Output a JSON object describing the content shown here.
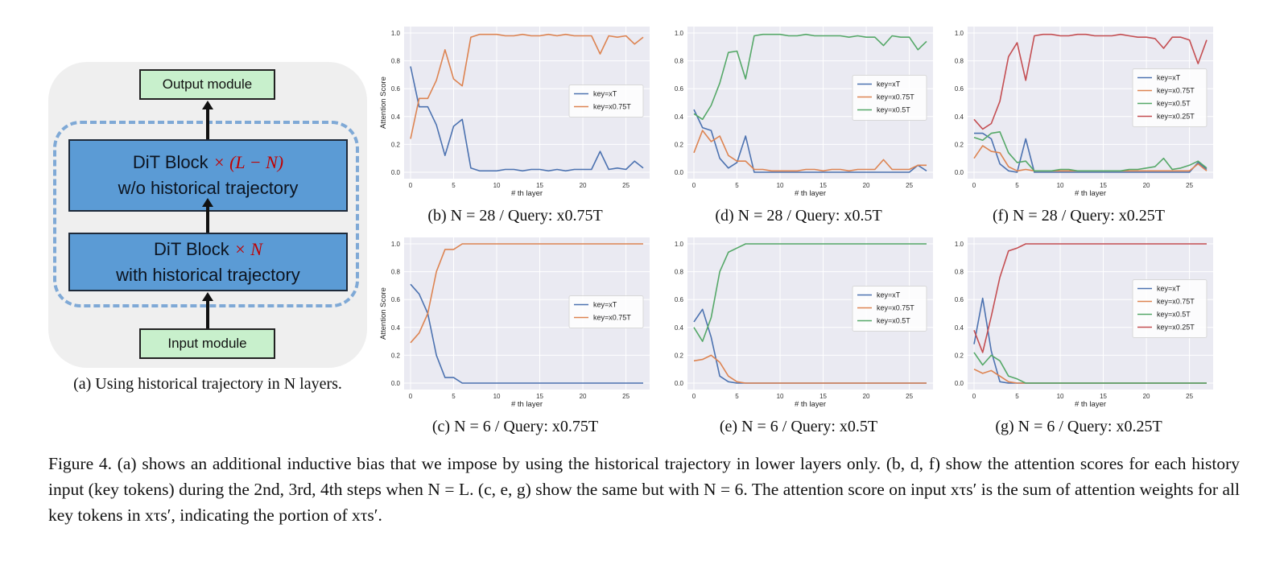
{
  "diagram": {
    "output_module": "Output module",
    "input_module": "Input module",
    "block_top": {
      "title": "DiT Block",
      "mult": "× (L − N)",
      "sub": "w/o historical trajectory"
    },
    "block_bottom": {
      "title": "DiT Block",
      "mult": "× N",
      "sub": "with historical trajectory"
    },
    "caption": "(a) Using historical trajectory in N layers."
  },
  "figure_caption": "Figure 4. (a) shows an additional inductive bias that we impose by using the historical trajectory in lower layers only. (b, d, f) show the attention scores for each history input (key tokens) during the 2nd, 3rd, 4th steps when N = L. (c, e, g) show the same but with N = 6. The attention score on input xτs′ is the sum of attention weights for all key tokens in xτs′, indicating the portion of xτs′.",
  "colors": {
    "blue": "#4c72b0",
    "orange": "#dd8452",
    "green": "#55a868",
    "red": "#c44e52",
    "plot_bg": "#eaeaf2"
  },
  "chart_data": [
    {
      "id": "b",
      "type": "line",
      "caption": "(b) N = 28 / Query: x0.75T",
      "xlabel": "# th layer",
      "ylabel": "Attention Score",
      "xlim": [
        0,
        27
      ],
      "ylim": [
        0,
        1.0
      ],
      "xticks": [
        0,
        5,
        10,
        15,
        20,
        25
      ],
      "yticks": [
        0.0,
        0.2,
        0.4,
        0.6,
        0.8,
        1.0
      ],
      "legend": "center-right",
      "series": [
        {
          "name": "key=xT",
          "color": "#4c72b0",
          "values": [
            0.76,
            0.47,
            0.47,
            0.34,
            0.12,
            0.33,
            0.38,
            0.03,
            0.01,
            0.01,
            0.01,
            0.02,
            0.02,
            0.01,
            0.02,
            0.02,
            0.01,
            0.02,
            0.01,
            0.02,
            0.02,
            0.02,
            0.15,
            0.02,
            0.03,
            0.02,
            0.08,
            0.03
          ]
        },
        {
          "name": "key=x0.75T",
          "color": "#dd8452",
          "values": [
            0.24,
            0.53,
            0.53,
            0.66,
            0.88,
            0.67,
            0.62,
            0.97,
            0.99,
            0.99,
            0.99,
            0.98,
            0.98,
            0.99,
            0.98,
            0.98,
            0.99,
            0.98,
            0.99,
            0.98,
            0.98,
            0.98,
            0.85,
            0.98,
            0.97,
            0.98,
            0.92,
            0.97
          ]
        }
      ]
    },
    {
      "id": "d",
      "type": "line",
      "caption": "(d) N = 28 / Query: x0.5T",
      "xlabel": "# th layer",
      "ylabel": "",
      "xlim": [
        0,
        27
      ],
      "ylim": [
        0,
        1.0
      ],
      "xticks": [
        0,
        5,
        10,
        15,
        20,
        25
      ],
      "yticks": [
        0.0,
        0.2,
        0.4,
        0.6,
        0.8,
        1.0
      ],
      "legend": "center-right",
      "series": [
        {
          "name": "key=xT",
          "color": "#4c72b0",
          "values": [
            0.45,
            0.32,
            0.3,
            0.1,
            0.03,
            0.07,
            0.26,
            0.0,
            0.0,
            0.0,
            0.0,
            0.0,
            0.0,
            0.0,
            0.0,
            0.0,
            0.0,
            0.0,
            0.0,
            0.0,
            0.0,
            0.0,
            0.0,
            0.0,
            0.0,
            0.0,
            0.05,
            0.01
          ]
        },
        {
          "name": "key=x0.75T",
          "color": "#dd8452",
          "values": [
            0.14,
            0.3,
            0.22,
            0.26,
            0.12,
            0.08,
            0.08,
            0.02,
            0.02,
            0.01,
            0.01,
            0.01,
            0.01,
            0.02,
            0.02,
            0.01,
            0.02,
            0.02,
            0.01,
            0.02,
            0.02,
            0.02,
            0.09,
            0.02,
            0.02,
            0.02,
            0.05,
            0.05
          ]
        },
        {
          "name": "key=x0.5T",
          "color": "#55a868",
          "values": [
            0.42,
            0.38,
            0.48,
            0.64,
            0.86,
            0.87,
            0.67,
            0.98,
            0.99,
            0.99,
            0.99,
            0.98,
            0.98,
            0.99,
            0.98,
            0.98,
            0.98,
            0.98,
            0.97,
            0.98,
            0.97,
            0.97,
            0.91,
            0.98,
            0.97,
            0.97,
            0.88,
            0.94
          ]
        }
      ]
    },
    {
      "id": "f",
      "type": "line",
      "caption": "(f) N = 28 / Query: x0.25T",
      "xlabel": "# th layer",
      "ylabel": "",
      "xlim": [
        0,
        27
      ],
      "ylim": [
        0,
        1.0
      ],
      "xticks": [
        0,
        5,
        10,
        15,
        20,
        25
      ],
      "yticks": [
        0.0,
        0.2,
        0.4,
        0.6,
        0.8,
        1.0
      ],
      "legend": "center-right",
      "series": [
        {
          "name": "key=xT",
          "color": "#4c72b0",
          "values": [
            0.28,
            0.28,
            0.24,
            0.06,
            0.01,
            0.0,
            0.24,
            0.0,
            0.0,
            0.0,
            0.0,
            0.0,
            0.0,
            0.0,
            0.0,
            0.0,
            0.0,
            0.0,
            0.0,
            0.0,
            0.0,
            0.0,
            0.0,
            0.0,
            0.0,
            0.0,
            0.07,
            0.02
          ]
        },
        {
          "name": "key=x0.75T",
          "color": "#dd8452",
          "values": [
            0.1,
            0.19,
            0.15,
            0.14,
            0.04,
            0.01,
            0.02,
            0.01,
            0.01,
            0.01,
            0.01,
            0.01,
            0.01,
            0.01,
            0.01,
            0.01,
            0.01,
            0.01,
            0.01,
            0.01,
            0.01,
            0.01,
            0.01,
            0.01,
            0.01,
            0.01,
            0.06,
            0.01
          ]
        },
        {
          "name": "key=x0.5T",
          "color": "#55a868",
          "values": [
            0.25,
            0.23,
            0.28,
            0.29,
            0.14,
            0.07,
            0.08,
            0.01,
            0.01,
            0.01,
            0.02,
            0.02,
            0.01,
            0.01,
            0.01,
            0.01,
            0.01,
            0.01,
            0.02,
            0.02,
            0.03,
            0.04,
            0.1,
            0.02,
            0.03,
            0.05,
            0.08,
            0.03
          ]
        },
        {
          "name": "key=x0.25T",
          "color": "#c44e52",
          "values": [
            0.38,
            0.31,
            0.35,
            0.51,
            0.83,
            0.93,
            0.66,
            0.98,
            0.99,
            0.99,
            0.98,
            0.98,
            0.99,
            0.99,
            0.98,
            0.98,
            0.98,
            0.99,
            0.98,
            0.97,
            0.97,
            0.96,
            0.89,
            0.97,
            0.97,
            0.95,
            0.78,
            0.95
          ]
        }
      ]
    },
    {
      "id": "c",
      "type": "line",
      "caption": "(c) N = 6 / Query: x0.75T",
      "xlabel": "# th layer",
      "ylabel": "Attention Score",
      "xlim": [
        0,
        27
      ],
      "ylim": [
        0,
        1.0
      ],
      "xticks": [
        0,
        5,
        10,
        15,
        20,
        25
      ],
      "yticks": [
        0.0,
        0.2,
        0.4,
        0.6,
        0.8,
        1.0
      ],
      "legend": "center-right",
      "series": [
        {
          "name": "key=xT",
          "color": "#4c72b0",
          "values": [
            0.71,
            0.64,
            0.5,
            0.2,
            0.04,
            0.04,
            0.0,
            0.0,
            0.0,
            0.0,
            0.0,
            0.0,
            0.0,
            0.0,
            0.0,
            0.0,
            0.0,
            0.0,
            0.0,
            0.0,
            0.0,
            0.0,
            0.0,
            0.0,
            0.0,
            0.0,
            0.0,
            0.0
          ]
        },
        {
          "name": "key=x0.75T",
          "color": "#dd8452",
          "values": [
            0.29,
            0.36,
            0.5,
            0.8,
            0.96,
            0.96,
            1.0,
            1.0,
            1.0,
            1.0,
            1.0,
            1.0,
            1.0,
            1.0,
            1.0,
            1.0,
            1.0,
            1.0,
            1.0,
            1.0,
            1.0,
            1.0,
            1.0,
            1.0,
            1.0,
            1.0,
            1.0,
            1.0
          ]
        }
      ]
    },
    {
      "id": "e",
      "type": "line",
      "caption": "(e) N = 6 / Query: x0.5T",
      "xlabel": "# th layer",
      "ylabel": "",
      "xlim": [
        0,
        27
      ],
      "ylim": [
        0,
        1.0
      ],
      "xticks": [
        0,
        5,
        10,
        15,
        20,
        25
      ],
      "yticks": [
        0.0,
        0.2,
        0.4,
        0.6,
        0.8,
        1.0
      ],
      "legend": "center-right",
      "series": [
        {
          "name": "key=xT",
          "color": "#4c72b0",
          "values": [
            0.44,
            0.53,
            0.33,
            0.05,
            0.01,
            0.0,
            0.0,
            0.0,
            0.0,
            0.0,
            0.0,
            0.0,
            0.0,
            0.0,
            0.0,
            0.0,
            0.0,
            0.0,
            0.0,
            0.0,
            0.0,
            0.0,
            0.0,
            0.0,
            0.0,
            0.0,
            0.0,
            0.0
          ]
        },
        {
          "name": "key=x0.75T",
          "color": "#dd8452",
          "values": [
            0.16,
            0.17,
            0.2,
            0.15,
            0.05,
            0.01,
            0.0,
            0.0,
            0.0,
            0.0,
            0.0,
            0.0,
            0.0,
            0.0,
            0.0,
            0.0,
            0.0,
            0.0,
            0.0,
            0.0,
            0.0,
            0.0,
            0.0,
            0.0,
            0.0,
            0.0,
            0.0,
            0.0
          ]
        },
        {
          "name": "key=x0.5T",
          "color": "#55a868",
          "values": [
            0.4,
            0.3,
            0.47,
            0.8,
            0.94,
            0.97,
            1.0,
            1.0,
            1.0,
            1.0,
            1.0,
            1.0,
            1.0,
            1.0,
            1.0,
            1.0,
            1.0,
            1.0,
            1.0,
            1.0,
            1.0,
            1.0,
            1.0,
            1.0,
            1.0,
            1.0,
            1.0,
            1.0
          ]
        }
      ]
    },
    {
      "id": "g",
      "type": "line",
      "caption": "(g) N = 6 / Query: x0.25T",
      "xlabel": "# th layer",
      "ylabel": "",
      "xlim": [
        0,
        27
      ],
      "ylim": [
        0,
        1.0
      ],
      "xticks": [
        0,
        5,
        10,
        15,
        20,
        25
      ],
      "yticks": [
        0.0,
        0.2,
        0.4,
        0.6,
        0.8,
        1.0
      ],
      "legend": "center-right",
      "series": [
        {
          "name": "key=xT",
          "color": "#4c72b0",
          "values": [
            0.28,
            0.61,
            0.23,
            0.01,
            0.0,
            0.0,
            0.0,
            0.0,
            0.0,
            0.0,
            0.0,
            0.0,
            0.0,
            0.0,
            0.0,
            0.0,
            0.0,
            0.0,
            0.0,
            0.0,
            0.0,
            0.0,
            0.0,
            0.0,
            0.0,
            0.0,
            0.0,
            0.0
          ]
        },
        {
          "name": "key=x0.75T",
          "color": "#dd8452",
          "values": [
            0.1,
            0.07,
            0.09,
            0.05,
            0.01,
            0.0,
            0.0,
            0.0,
            0.0,
            0.0,
            0.0,
            0.0,
            0.0,
            0.0,
            0.0,
            0.0,
            0.0,
            0.0,
            0.0,
            0.0,
            0.0,
            0.0,
            0.0,
            0.0,
            0.0,
            0.0,
            0.0,
            0.0
          ]
        },
        {
          "name": "key=x0.5T",
          "color": "#55a868",
          "values": [
            0.22,
            0.13,
            0.2,
            0.16,
            0.05,
            0.03,
            0.0,
            0.0,
            0.0,
            0.0,
            0.0,
            0.0,
            0.0,
            0.0,
            0.0,
            0.0,
            0.0,
            0.0,
            0.0,
            0.0,
            0.0,
            0.0,
            0.0,
            0.0,
            0.0,
            0.0,
            0.0,
            0.0
          ]
        },
        {
          "name": "key=x0.25T",
          "color": "#c44e52",
          "values": [
            0.38,
            0.22,
            0.48,
            0.76,
            0.95,
            0.97,
            1.0,
            1.0,
            1.0,
            1.0,
            1.0,
            1.0,
            1.0,
            1.0,
            1.0,
            1.0,
            1.0,
            1.0,
            1.0,
            1.0,
            1.0,
            1.0,
            1.0,
            1.0,
            1.0,
            1.0,
            1.0,
            1.0
          ]
        }
      ]
    }
  ]
}
